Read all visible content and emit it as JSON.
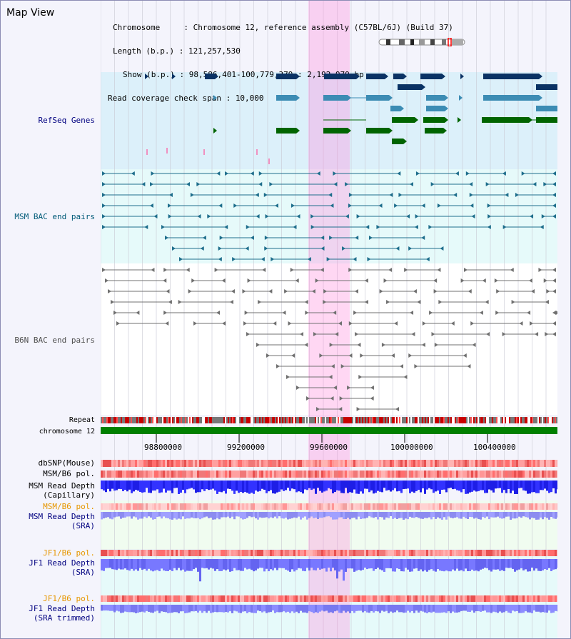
{
  "view_title": "Map View",
  "info": {
    "chromosome_label": "Chromosome     :",
    "chromosome_value": "Chromosome 12, reference assembly (C57BL/6J) (Build 37)",
    "length_label": "Length (b.p.) :",
    "length_value": "121,257,530",
    "show_label": "Show (b.p.) :",
    "show_value": "98,586,401-100,779,379 : 2,192,979 bp",
    "span_label": "Read coverage check span :",
    "span_value": "10,000"
  },
  "tracks": {
    "refseq": "RefSeq Genes",
    "msm_bac": "MSM BAC end pairs",
    "b6n_bac": "B6N BAC end pairs",
    "repeat": "Repeat",
    "chrom": "chromosome 12",
    "dbsnp": "dbSNP(Mouse)",
    "msm_pol1": "MSM/B6 pol.",
    "msm_depth_cap_1": "MSM Read Depth",
    "msm_depth_cap_2": "(Capillary)",
    "msm_pol2": "MSM/B6 pol.",
    "msm_depth_sra_1": "MSM Read Depth",
    "msm_depth_sra_2": "(SRA)",
    "jf1_pol1": "JF1/B6 pol.",
    "jf1_depth_sra_1": "JF1 Read Depth",
    "jf1_depth_sra_2": "(SRA)",
    "jf1_pol2": "JF1/B6 pol.",
    "jf1_depth_trim_1": "JF1 Read Depth",
    "jf1_depth_trim_2": "(SRA trimmed)"
  },
  "axis": {
    "ticks": [
      "98800000",
      "99200000",
      "99600000",
      "100000000",
      "100400000"
    ]
  },
  "colors": {
    "refseq_bg": "#dcf0fa",
    "msm_bg": "#e6fafa",
    "highlight": "#ffc8f0",
    "gene_dark": "#0a3264",
    "gene_mid": "#3c8cb4",
    "gene_green": "#006400",
    "chrom_green": "#008000",
    "label_blue": "#000080",
    "label_teal": "#005a78",
    "label_orange": "#e69600"
  }
}
